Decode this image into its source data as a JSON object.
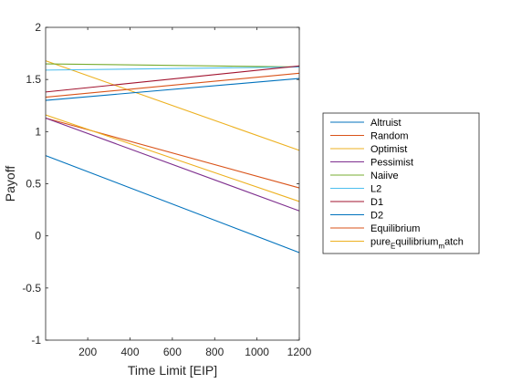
{
  "chart_data": {
    "type": "line",
    "xlabel": "Time Limit [EIP]",
    "ylabel": "Payoff",
    "xlim": [
      1,
      1200
    ],
    "ylim": [
      -1,
      2
    ],
    "xticks": [
      200,
      400,
      600,
      800,
      1000,
      1200
    ],
    "yticks": [
      -1,
      -0.5,
      0,
      0.5,
      1,
      1.5,
      2
    ],
    "xtick_labels": [
      "200",
      "400",
      "600",
      "800",
      "1000",
      "1200"
    ],
    "ytick_labels": [
      "-1",
      "-0.5",
      "0",
      "0.5",
      "1",
      "1.5",
      "2"
    ],
    "grid": false,
    "legend_position": "outside-right",
    "series": [
      {
        "name": "Altruist",
        "color": "#0072BD",
        "x": [
          1,
          1200
        ],
        "y": [
          0.77,
          -0.16
        ]
      },
      {
        "name": "Random",
        "color": "#D95319",
        "x": [
          1,
          1200
        ],
        "y": [
          1.13,
          0.46
        ]
      },
      {
        "name": "Optimist",
        "color": "#EDB120",
        "x": [
          1,
          1200
        ],
        "y": [
          1.68,
          0.82
        ]
      },
      {
        "name": "Pessimist",
        "color": "#7E2F8E",
        "x": [
          1,
          1200
        ],
        "y": [
          1.13,
          0.24
        ]
      },
      {
        "name": "Naiive",
        "color": "#77AC30",
        "x": [
          1,
          1200
        ],
        "y": [
          1.65,
          1.62
        ]
      },
      {
        "name": "L2",
        "color": "#4DBEEE",
        "x": [
          1,
          1200
        ],
        "y": [
          1.59,
          1.62
        ]
      },
      {
        "name": "D1",
        "color": "#A2142F",
        "x": [
          1,
          1200
        ],
        "y": [
          1.38,
          1.63
        ]
      },
      {
        "name": "D2",
        "color": "#0072BD",
        "x": [
          1,
          1200
        ],
        "y": [
          1.3,
          1.51
        ]
      },
      {
        "name": "Equilibrium",
        "color": "#D95319",
        "x": [
          1,
          1200
        ],
        "y": [
          1.33,
          1.56
        ]
      },
      {
        "name": "pure_Equilibrium_match",
        "name_display": {
          "main1": "pure",
          "sub1": "E",
          "main2": "quilibrium",
          "sub2": "m",
          "main3": "atch"
        },
        "color": "#EDB120",
        "x": [
          1,
          1200
        ],
        "y": [
          1.16,
          0.33
        ]
      }
    ]
  }
}
